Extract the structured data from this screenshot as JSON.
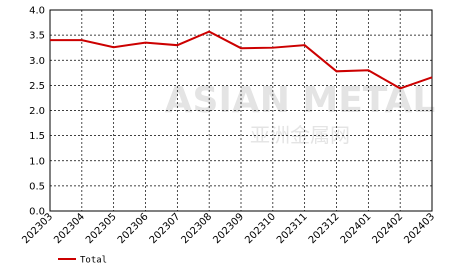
{
  "chart_data": {
    "type": "line",
    "categories": [
      "202303",
      "202304",
      "202305",
      "202306",
      "202307",
      "202308",
      "202309",
      "202310",
      "202311",
      "202312",
      "202401",
      "202402",
      "202403"
    ],
    "series": [
      {
        "name": "Total",
        "color": "#cc0000",
        "values": [
          3.4,
          3.4,
          3.26,
          3.35,
          3.3,
          3.57,
          3.24,
          3.25,
          3.3,
          2.78,
          2.8,
          2.44,
          2.66
        ]
      }
    ],
    "ylim": [
      0,
      4
    ],
    "yticks": [
      {
        "value": 0,
        "label": "0.0"
      },
      0.5,
      {
        "value": 1,
        "label": "1.0"
      },
      1.5,
      {
        "value": 2,
        "label": "2.0"
      },
      2.5,
      {
        "value": 3,
        "label": "3.0"
      },
      3.5,
      {
        "value": 4,
        "label": "4.0"
      }
    ],
    "grid": true,
    "legend": "bottom",
    "watermark": [
      "ASIAN METAL",
      "亚洲金属网"
    ]
  }
}
